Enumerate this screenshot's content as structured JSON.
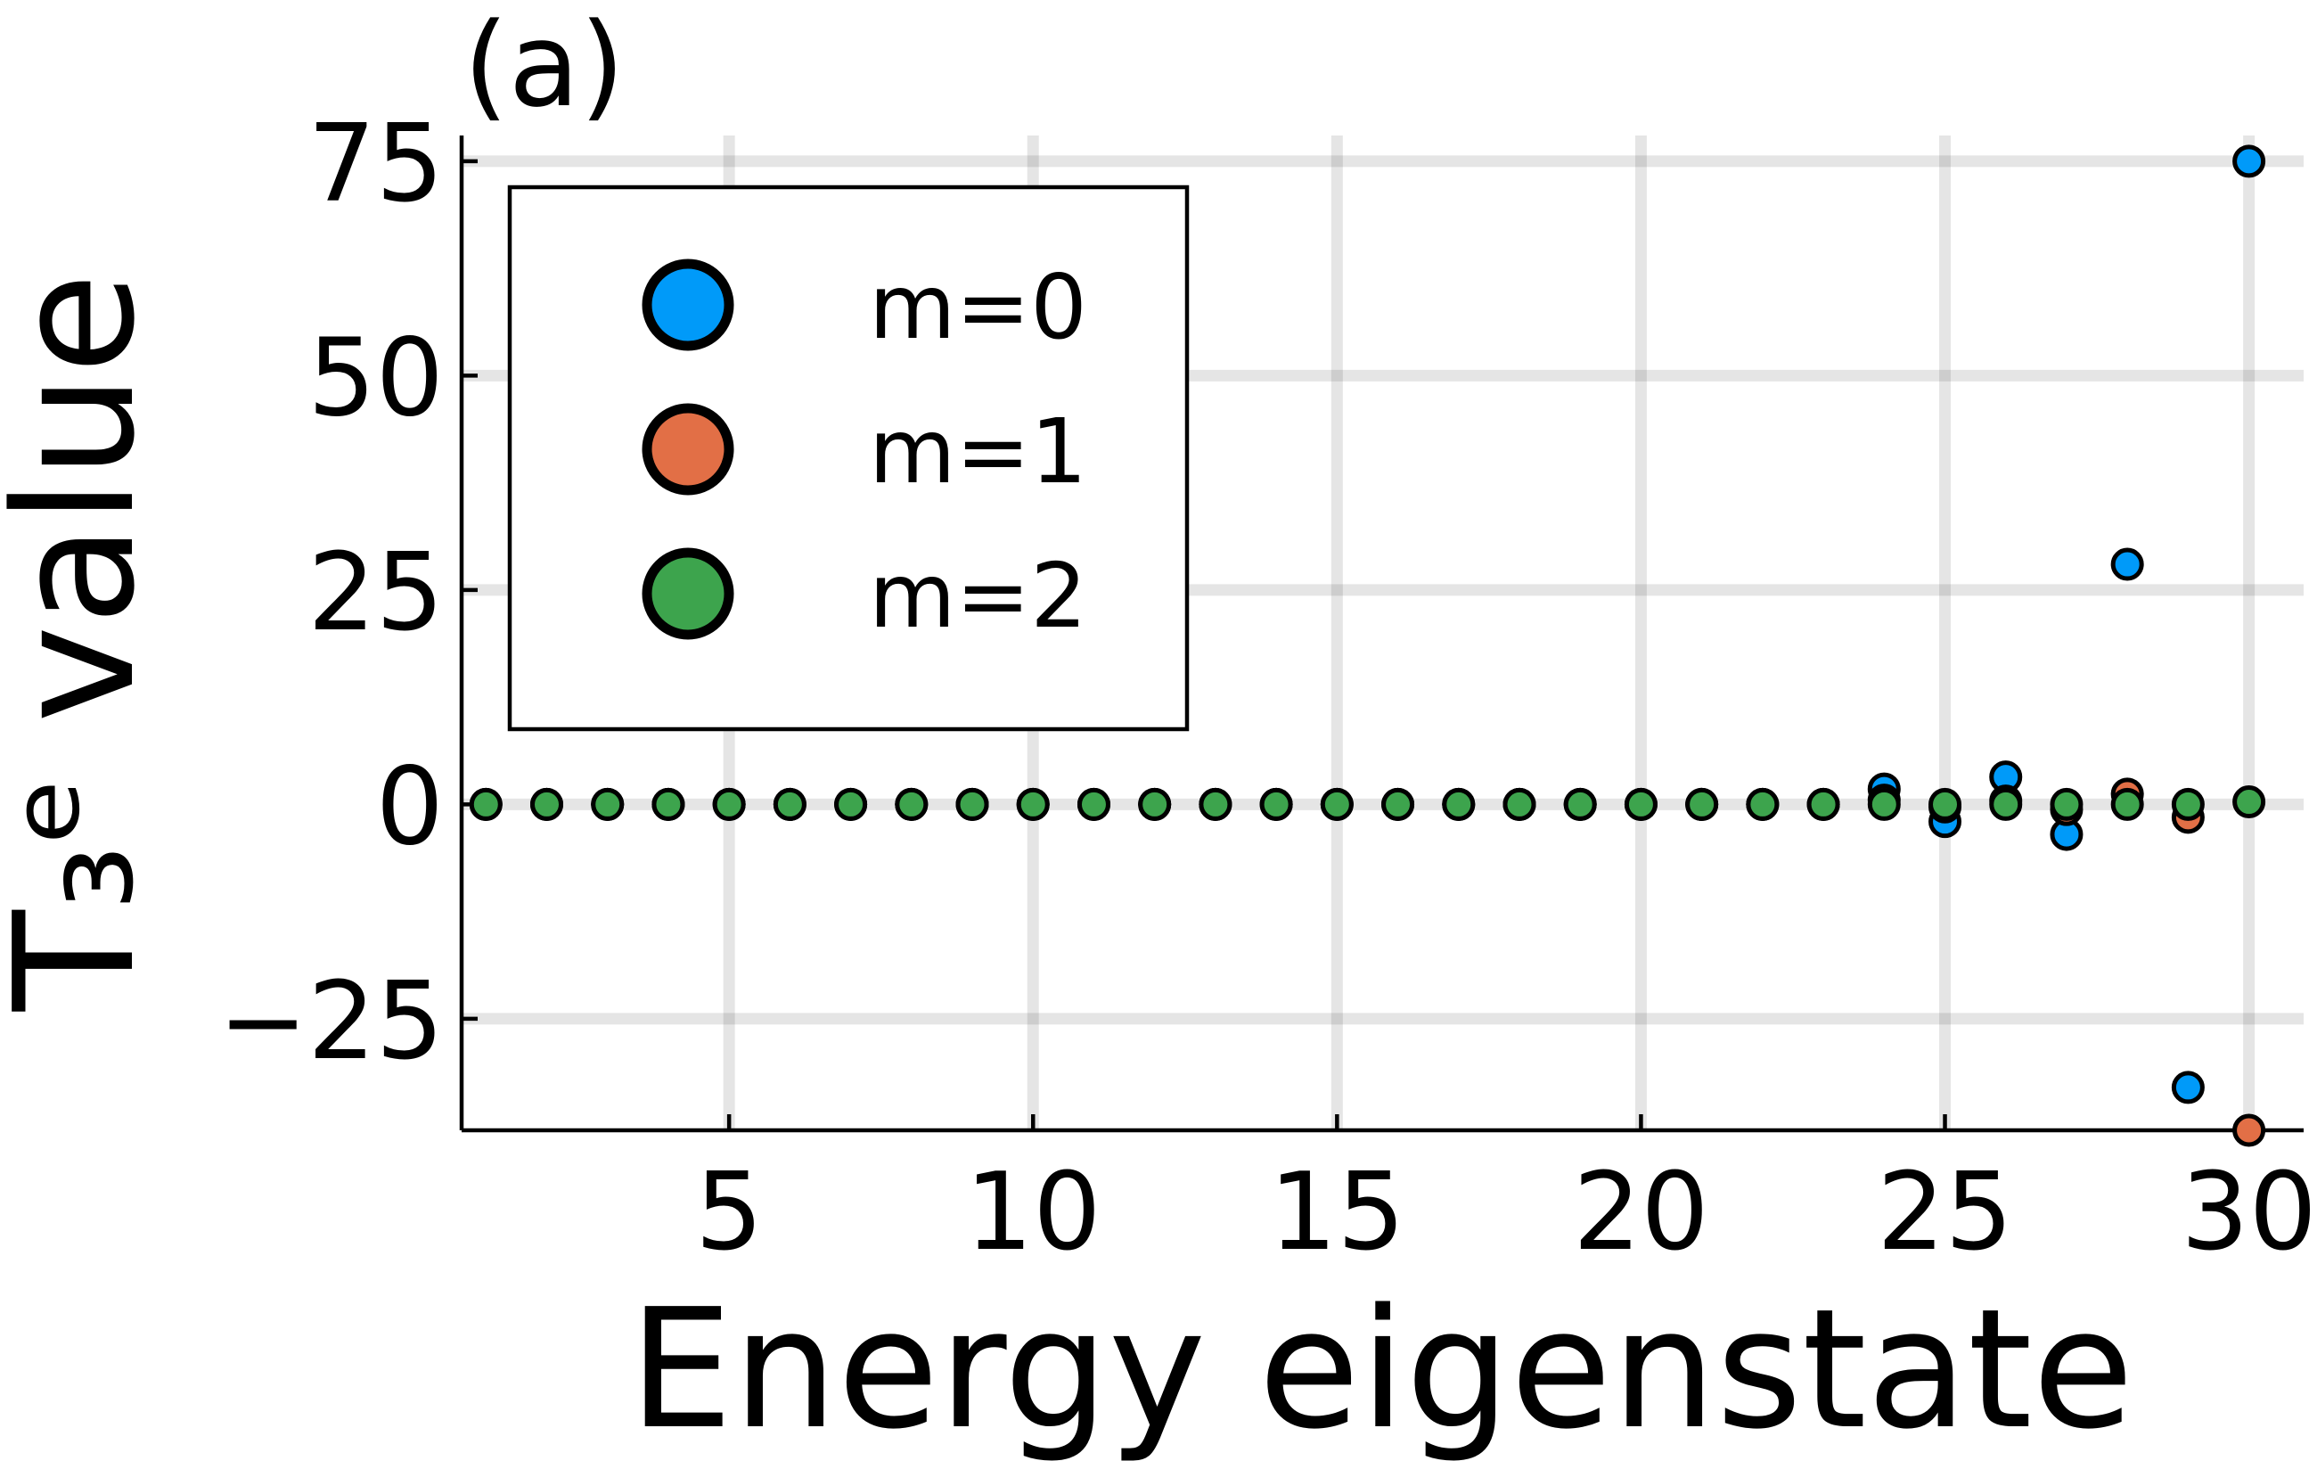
{
  "panel_label": "(a)",
  "chart_data": {
    "type": "scatter",
    "title": "",
    "xlabel": "Energy eigenstate",
    "ylabel": "T₃ᵉ value",
    "xlim": [
      0.6,
      30.9
    ],
    "ylim": [
      -38,
      78
    ],
    "xticks": [
      5,
      10,
      15,
      20,
      25,
      30
    ],
    "xtick_labels": [
      "5",
      "10",
      "15",
      "20",
      "25",
      "30"
    ],
    "yticks": [
      -25,
      0,
      25,
      50,
      75
    ],
    "ytick_labels": [
      "−25",
      "0",
      "25",
      "50",
      "75"
    ],
    "grid": true,
    "legend_position": "top-left",
    "series": [
      {
        "name": "m=0",
        "color": "#009af9",
        "x": [
          1,
          2,
          3,
          4,
          5,
          6,
          7,
          8,
          9,
          10,
          11,
          12,
          13,
          14,
          15,
          16,
          17,
          18,
          19,
          20,
          21,
          22,
          23,
          24,
          25,
          26,
          27,
          28,
          29,
          30
        ],
        "y": [
          0,
          0,
          0,
          0,
          0,
          0,
          0,
          0,
          0,
          0,
          0,
          0,
          0,
          0,
          0,
          0,
          0,
          0,
          0,
          0,
          0,
          0,
          0,
          1.8,
          -2,
          3.2,
          -3.5,
          28,
          -33,
          75
        ]
      },
      {
        "name": "m=1",
        "color": "#e26f46",
        "x": [
          1,
          2,
          3,
          4,
          5,
          6,
          7,
          8,
          9,
          10,
          11,
          12,
          13,
          14,
          15,
          16,
          17,
          18,
          19,
          20,
          21,
          22,
          23,
          24,
          25,
          26,
          27,
          28,
          29,
          30
        ],
        "y": [
          0,
          0,
          0,
          0,
          0,
          0,
          0,
          0,
          0,
          0,
          0,
          0,
          0,
          0,
          0,
          0,
          0,
          0,
          0,
          0,
          0,
          0,
          0,
          0.5,
          -0.3,
          0.4,
          -0.6,
          1.2,
          -1.5,
          -38
        ]
      },
      {
        "name": "m=2",
        "color": "#3da44d",
        "x": [
          1,
          2,
          3,
          4,
          5,
          6,
          7,
          8,
          9,
          10,
          11,
          12,
          13,
          14,
          15,
          16,
          17,
          18,
          19,
          20,
          21,
          22,
          23,
          24,
          25,
          26,
          27,
          28,
          29,
          30
        ],
        "y": [
          0,
          0,
          0,
          0,
          0,
          0,
          0,
          0,
          0,
          0,
          0,
          0,
          0,
          0,
          0,
          0,
          0,
          0,
          0,
          0,
          0,
          0,
          0,
          0,
          0,
          0,
          0,
          0,
          0,
          0.3
        ]
      }
    ]
  }
}
